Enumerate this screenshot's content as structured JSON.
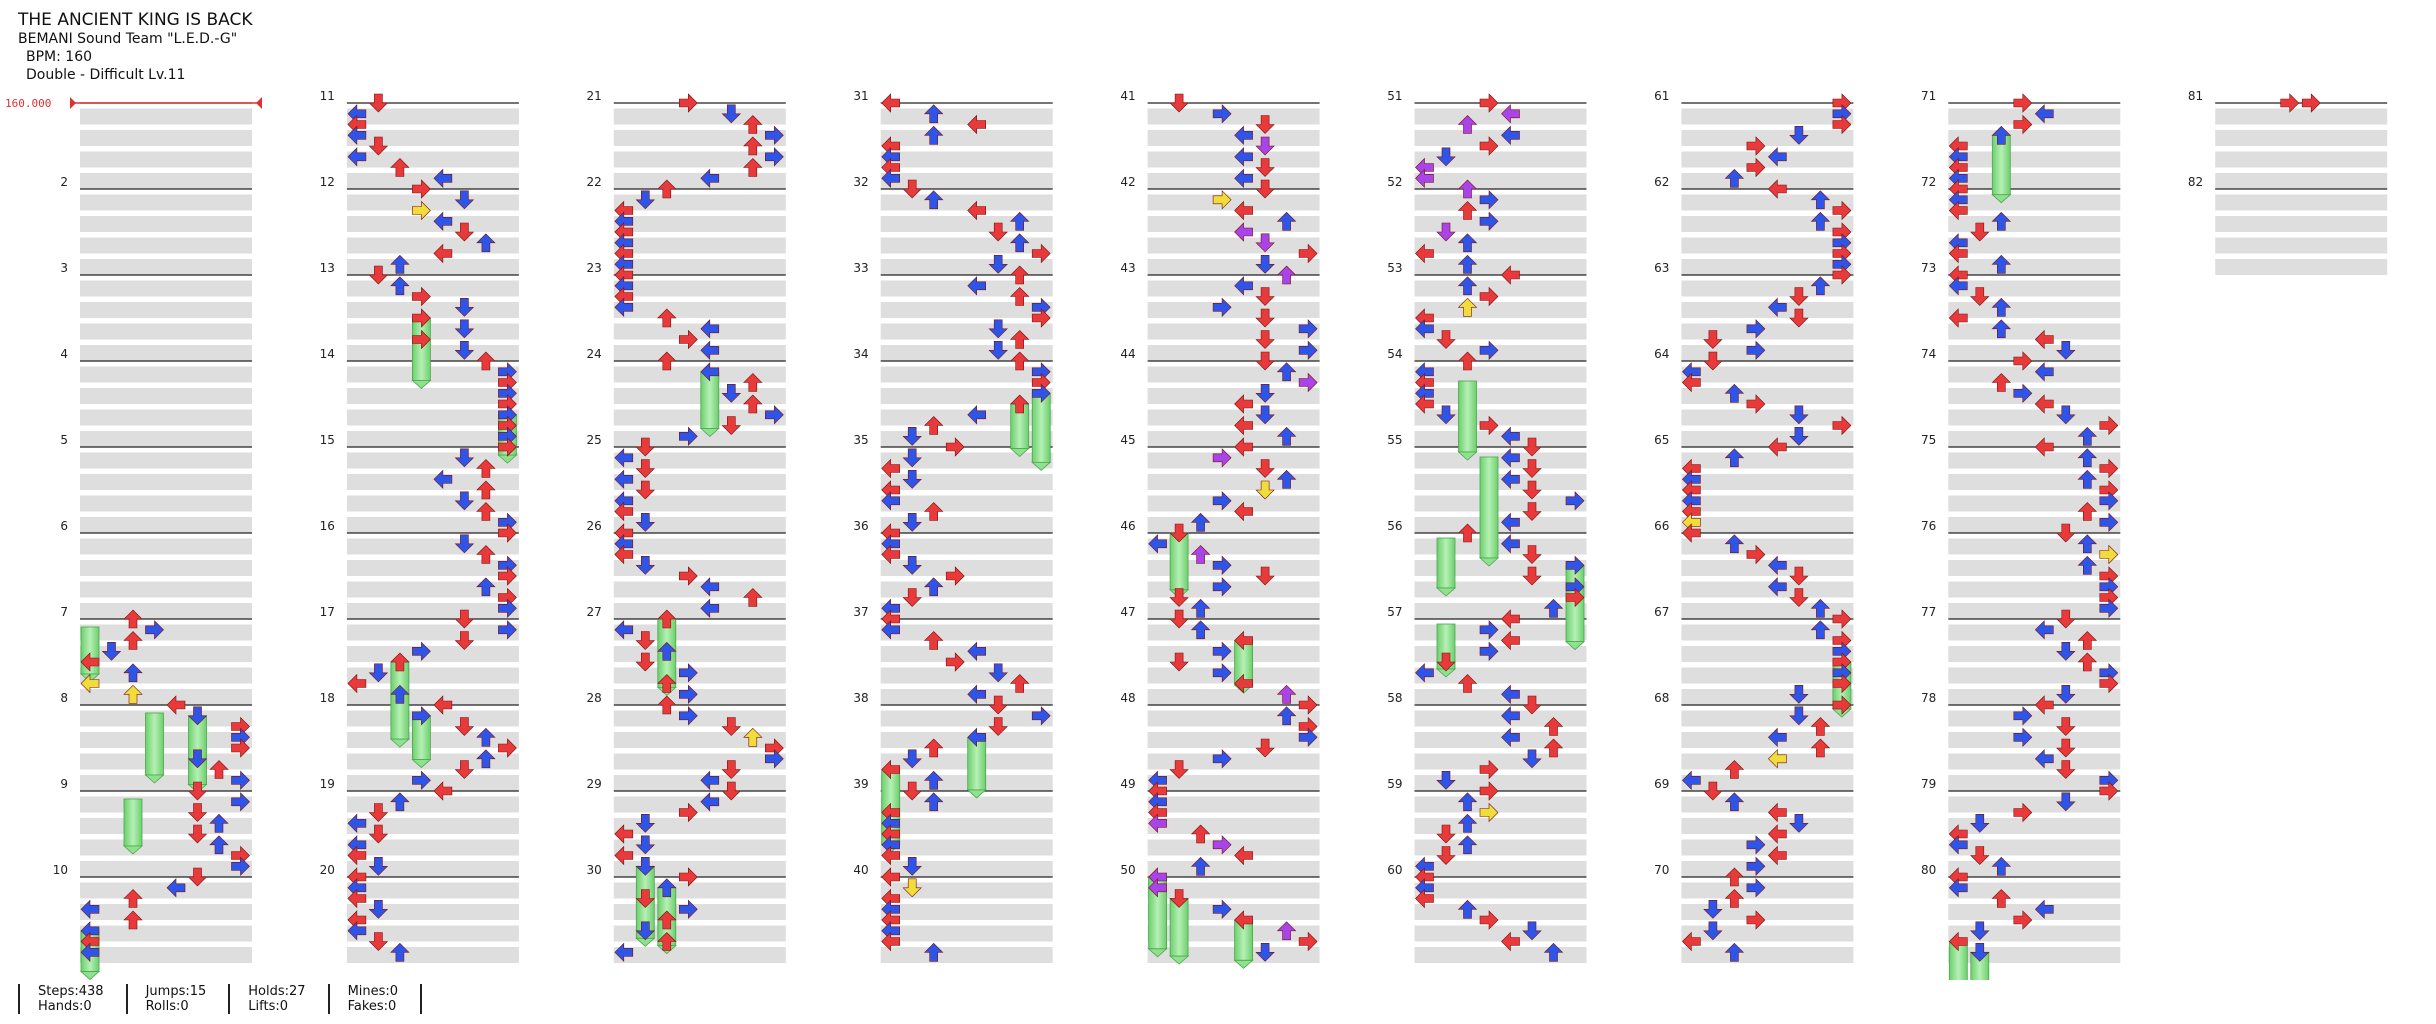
{
  "song": {
    "title": "THE ANCIENT KING IS BACK",
    "artist": "BEMANI Sound Team \"L.E.D.-G\"",
    "bpm_text": "BPM: 160",
    "difficulty_text": "Double - Difficult  Lv.11"
  },
  "chart_data": {
    "type": "table",
    "style": "Double",
    "difficulty": "Difficult",
    "level": 11,
    "bpm_marker": "160.000",
    "measure_numbers": [
      "2",
      "3",
      "4",
      "5",
      "6",
      "7",
      "8",
      "9",
      "10",
      "11",
      "12",
      "13",
      "14",
      "15",
      "16",
      "17",
      "18",
      "19",
      "20",
      "21",
      "22",
      "23",
      "24",
      "25",
      "26",
      "27",
      "28",
      "29",
      "30",
      "31",
      "32",
      "33",
      "34",
      "35",
      "36",
      "37",
      "38",
      "39",
      "40",
      "41",
      "42",
      "43",
      "44",
      "45",
      "46",
      "47",
      "48",
      "49",
      "50",
      "51",
      "52",
      "53",
      "54",
      "55",
      "56",
      "57",
      "58",
      "59",
      "60",
      "61",
      "62",
      "63",
      "64",
      "65",
      "66",
      "67",
      "68",
      "69",
      "70",
      "71",
      "72",
      "73",
      "74",
      "75",
      "76",
      "77",
      "78",
      "79",
      "80",
      "81",
      "82"
    ],
    "lanes": [
      "P1-left",
      "P1-down",
      "P1-up",
      "P1-right",
      "P2-left",
      "P2-down",
      "P2-up",
      "P2-right"
    ],
    "arrow_colors": {
      "quarter": "#e83a3a",
      "eighth": "#2f55e8",
      "sixteenth": "#f0dc3a",
      "twelfth": "#a844e8",
      "hold": "#8fe08f"
    }
  },
  "stats": {
    "steps": "Steps:438",
    "hands": "Hands:0",
    "jumps": "Jumps:15",
    "rolls": "Rolls:0",
    "holds": "Holds:27",
    "lifts": "Lifts:0",
    "mines": "Mines:0",
    "fakes": "Fakes:0"
  }
}
